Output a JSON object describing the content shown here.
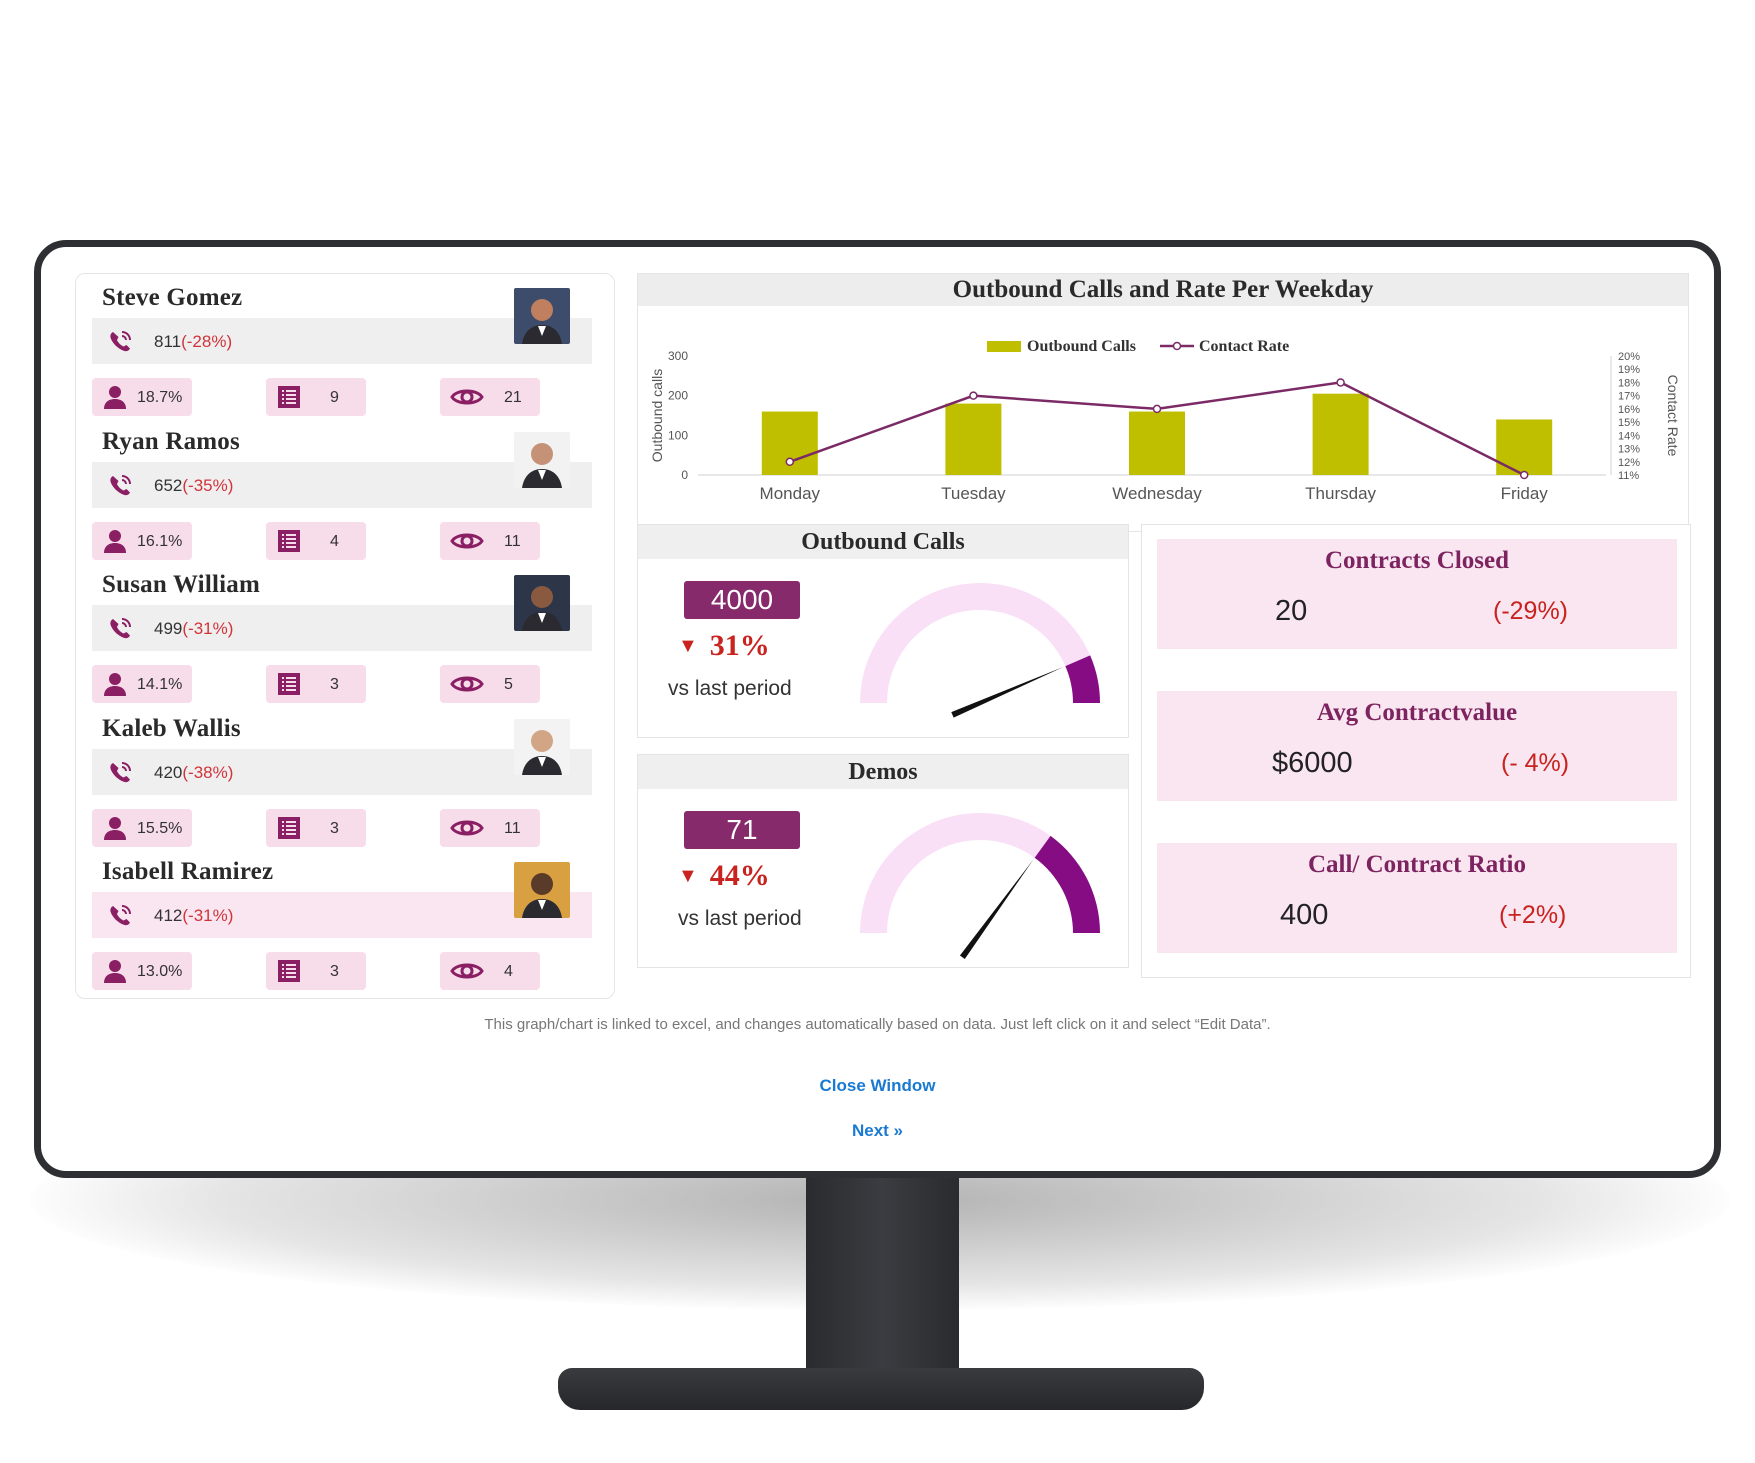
{
  "agents": [
    {
      "name": "Steve Gomez",
      "calls": "811",
      "calls_change": "(-28%)",
      "rate": "18.7%",
      "lists": "9",
      "views": "21"
    },
    {
      "name": "Ryan Ramos",
      "calls": "652",
      "calls_change": "(-35%)",
      "rate": "16.1%",
      "lists": "4",
      "views": "11"
    },
    {
      "name": "Susan William",
      "calls": "499",
      "calls_change": "(-31%)",
      "rate": "14.1%",
      "lists": "3",
      "views": "5"
    },
    {
      "name": "Kaleb Wallis",
      "calls": "420",
      "calls_change": "(-38%)",
      "rate": "15.5%",
      "lists": "3",
      "views": "11"
    },
    {
      "name": "Isabell Ramirez",
      "calls": "412",
      "calls_change": "(-31%)",
      "rate": "13.0%",
      "lists": "3",
      "views": "4"
    }
  ],
  "chart_data": {
    "type": "bar",
    "title": "Outbound Calls and Rate Per Weekday",
    "categories": [
      "Monday",
      "Tuesday",
      "Wednesday",
      "Thursday",
      "Friday"
    ],
    "series": [
      {
        "name": "Outbound Calls",
        "type": "bar",
        "axis": "left",
        "values": [
          160,
          180,
          160,
          205,
          140
        ],
        "color": "#bfbf00"
      },
      {
        "name": "Contact Rate",
        "type": "line",
        "axis": "right",
        "values": [
          12.0,
          17.0,
          16.0,
          18.0,
          11.0
        ],
        "color": "#7b2a66"
      }
    ],
    "ylabel": "Outbound calls",
    "y2label": "Contact Rate",
    "ylim": [
      0,
      300
    ],
    "y2lim": [
      11,
      20
    ],
    "yticks": [
      "0",
      "100",
      "200",
      "300"
    ],
    "y2ticks": [
      "11%",
      "12%",
      "13%",
      "14%",
      "15%",
      "16%",
      "17%",
      "18%",
      "19%",
      "20%"
    ],
    "legend": "top-center"
  },
  "outbound": {
    "title": "Outbound Calls",
    "value": "4000",
    "change": "31%",
    "sub": "vs last period",
    "gauge_level": 0.13
  },
  "demos": {
    "title": "Demos",
    "value": "71",
    "change": "44%",
    "sub": "vs last period",
    "gauge_level": 0.3
  },
  "kpis": [
    {
      "title": "Contracts Closed",
      "value": "20",
      "change": "(-29%)"
    },
    {
      "title": "Avg Contractvalue",
      "value": "$6000",
      "change": "(- 4%)"
    },
    {
      "title": "Call/ Contract Ratio",
      "value": "400",
      "change": "(+2%)"
    }
  ],
  "footnote": "This graph/chart is linked to excel,  and changes automatically based on data. Just left click on it and select “Edit Data”.",
  "links": {
    "close": "Close Window",
    "next": "Next »"
  },
  "colors": {
    "accent": "#862a6b",
    "pink": "#f9e6f1",
    "bar": "#bfbf00",
    "negative": "#c8231f",
    "link": "#1a7ad1"
  },
  "icons": {
    "calls": "phone-ringing-icon",
    "rate": "person-icon",
    "lists": "list-icon",
    "views": "eye-icon"
  }
}
